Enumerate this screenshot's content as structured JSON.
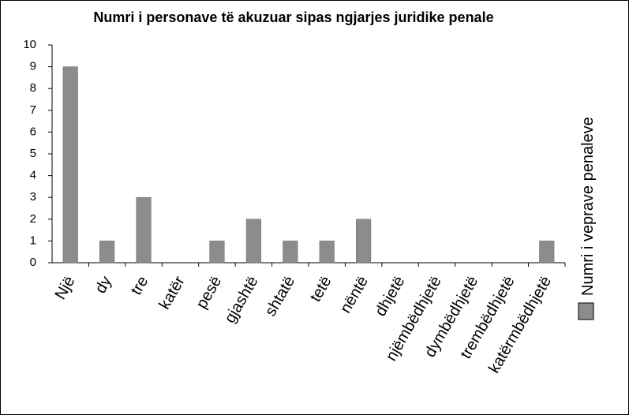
{
  "chart_data": {
    "type": "bar",
    "title": "Numri i personave të akuzuar sipas ngjarjes juridike penale",
    "categories": [
      "Një",
      "dy",
      "tre",
      "katër",
      "pesë",
      "gjashtë",
      "shtatë",
      "tetë",
      "nëntë",
      "dhjetë",
      "njëmbëdhjetë",
      "dymbëdhjetë",
      "trembëdhjetë",
      "katërmbëdhjetë"
    ],
    "series": [
      {
        "name": "Numri i veprave penaleve",
        "color": "#8c8c8c",
        "values": [
          9,
          1,
          3,
          0,
          1,
          2,
          1,
          1,
          2,
          0,
          0,
          0,
          0,
          1
        ]
      }
    ],
    "ylim": [
      0,
      10
    ],
    "yticks": [
      0,
      1,
      2,
      3,
      4,
      5,
      6,
      7,
      8,
      9,
      10
    ],
    "grid": false,
    "legend": "right"
  }
}
